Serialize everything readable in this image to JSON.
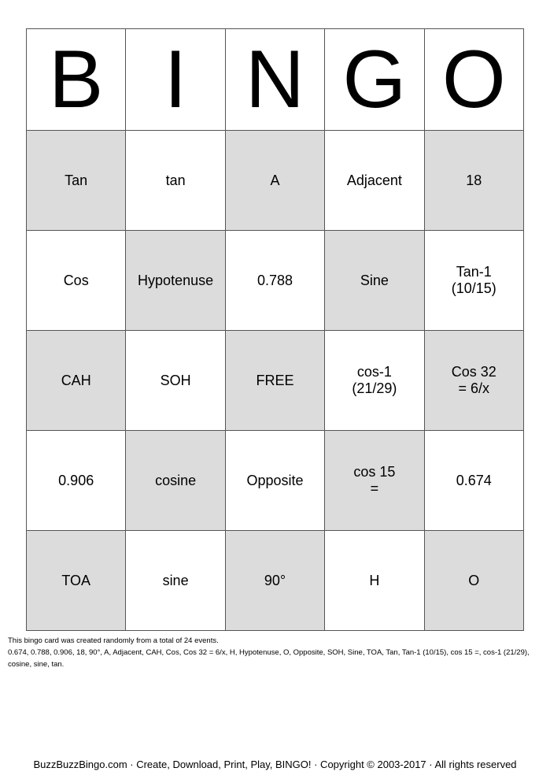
{
  "header": [
    "B",
    "I",
    "N",
    "G",
    "O"
  ],
  "rows": [
    [
      "Tan",
      "tan",
      "A",
      "Adjacent",
      "18"
    ],
    [
      "Cos",
      "Hypotenuse",
      "0.788",
      "Sine",
      "Tan-1\n(10/15)"
    ],
    [
      "CAH",
      "SOH",
      "FREE",
      "cos-1\n(21/29)",
      "Cos 32\n= 6/x"
    ],
    [
      "0.906",
      "cosine",
      "Opposite",
      "cos 15\n=",
      "0.674"
    ],
    [
      "TOA",
      "sine",
      "90°",
      "H",
      "O"
    ]
  ],
  "cell_colors": {
    "shaded": "#dcdcdc",
    "plain": "#ffffff"
  },
  "info": {
    "line1": "This bingo card was created randomly from a total of 24 events.",
    "line2": "0.674, 0.788, 0.906, 18, 90°, A, Adjacent, CAH, Cos, Cos 32 = 6/x, H, Hypotenuse, O, Opposite, SOH, Sine, TOA, Tan, Tan-1 (10/15), cos 15 =, cos-1 (21/29), cosine, sine, tan."
  },
  "footer": "BuzzBuzzBingo.com · Create, Download, Print, Play, BINGO! · Copyright © 2003-2017 · All rights reserved"
}
